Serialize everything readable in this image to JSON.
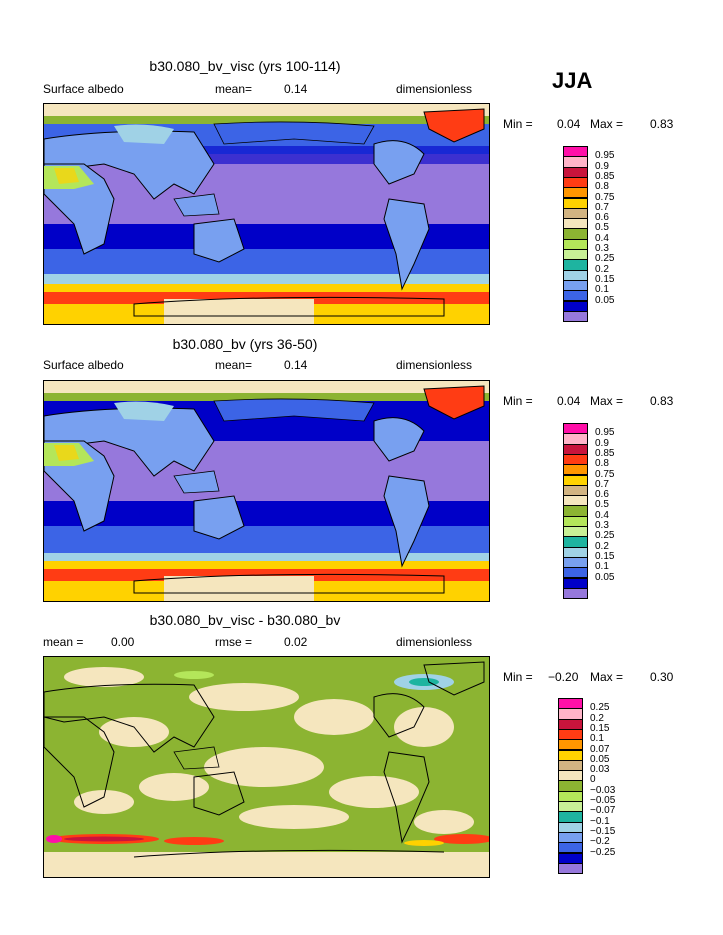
{
  "season": "JJA",
  "panels": [
    {
      "title": "b30.080_bv_visc (yrs 100-114)",
      "left_label": "Surface albedo",
      "mid_label": "mean=",
      "mid_value": "0.14",
      "right_label": "dimensionless",
      "min_label": "Min =",
      "min_value": "0.04",
      "max_label": "Max =",
      "max_value": "0.83"
    },
    {
      "title": "b30.080_bv (yrs 36-50)",
      "left_label": "Surface albedo",
      "mid_label": "mean=",
      "mid_value": "0.14",
      "right_label": "dimensionless",
      "min_label": "Min =",
      "min_value": "0.04",
      "max_label": "Max =",
      "max_value": "0.83"
    },
    {
      "title": "b30.080_bv_visc - b30.080_bv",
      "left_label": "mean =",
      "left_value": "0.00",
      "mid_label": "rmse =",
      "mid_value": "0.02",
      "right_label": "dimensionless",
      "min_label": "Min =",
      "min_value": "−0.20",
      "max_label": "Max =",
      "max_value": "0.30"
    }
  ],
  "colorbar_abs": {
    "colors": [
      "#ff0fa8",
      "#ffb4c8",
      "#c8143c",
      "#ff3c14",
      "#ff9600",
      "#ffd200",
      "#d2b482",
      "#f5e6be",
      "#8cb432",
      "#b4e65a",
      "#c8f096",
      "#1eb4a0",
      "#a0d2e6",
      "#78a0f0",
      "#3c64e6",
      "#0000c8",
      "#9678dc"
    ],
    "labels": [
      "0.95",
      "0.9",
      "0.85",
      "0.8",
      "0.75",
      "0.7",
      "0.6",
      "0.5",
      "0.4",
      "0.3",
      "0.25",
      "0.2",
      "0.15",
      "0.1",
      "0.05"
    ]
  },
  "colorbar_diff": {
    "colors": [
      "#ff0fa8",
      "#ffb4c8",
      "#c8143c",
      "#ff3c14",
      "#ff9600",
      "#ffd200",
      "#d2b482",
      "#f5e6be",
      "#8cb432",
      "#b4e65a",
      "#c8f096",
      "#1eb4a0",
      "#a0d2e6",
      "#78a0f0",
      "#3c64e6",
      "#0000c8",
      "#9678dc"
    ],
    "labels": [
      "0.25",
      "0.2",
      "0.15",
      "0.1",
      "0.07",
      "0.05",
      "0.03",
      "0",
      "−0.03",
      "−0.05",
      "−0.07",
      "−0.1",
      "−0.15",
      "−0.2",
      "−0.25"
    ]
  }
}
